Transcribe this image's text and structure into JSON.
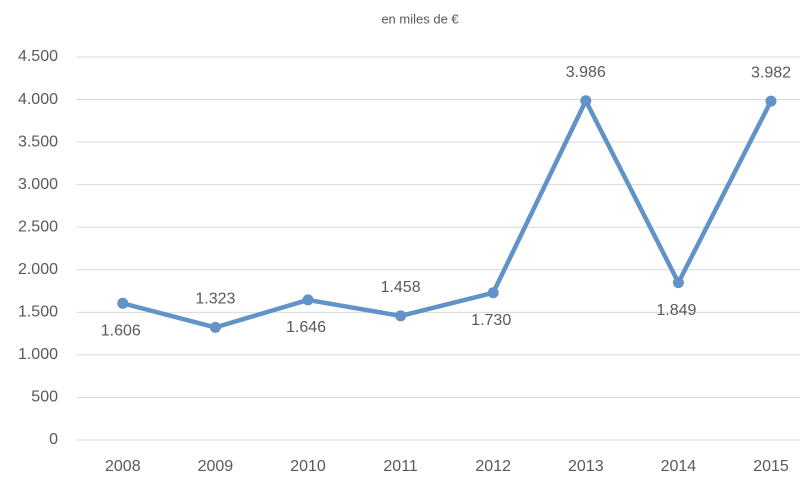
{
  "chart_data": {
    "type": "line",
    "title": "en miles de €",
    "categories": [
      "2008",
      "2009",
      "2010",
      "2011",
      "2012",
      "2013",
      "2014",
      "2015"
    ],
    "values": [
      1606,
      1323,
      1646,
      1458,
      1730,
      3986,
      1849,
      3982
    ],
    "value_labels": [
      "1.606",
      "1.323",
      "1.646",
      "1.458",
      "1.730",
      "3.986",
      "1.849",
      "3.982"
    ],
    "color": "#6192c8",
    "ylim": [
      0,
      4500
    ],
    "yticks": [
      0,
      500,
      {
        "value": 1000,
        "label": "1.000"
      },
      {
        "value": 1500,
        "label": "1.500"
      },
      {
        "value": 2000,
        "label": "2.000"
      },
      {
        "value": 2500,
        "label": "2.500"
      },
      {
        "value": 3000,
        "label": "3.000"
      },
      {
        "value": 3500,
        "label": "3.500"
      },
      {
        "value": 4000,
        "label": "4.000"
      },
      {
        "value": 4500,
        "label": "4.500"
      }
    ],
    "grid": true
  }
}
